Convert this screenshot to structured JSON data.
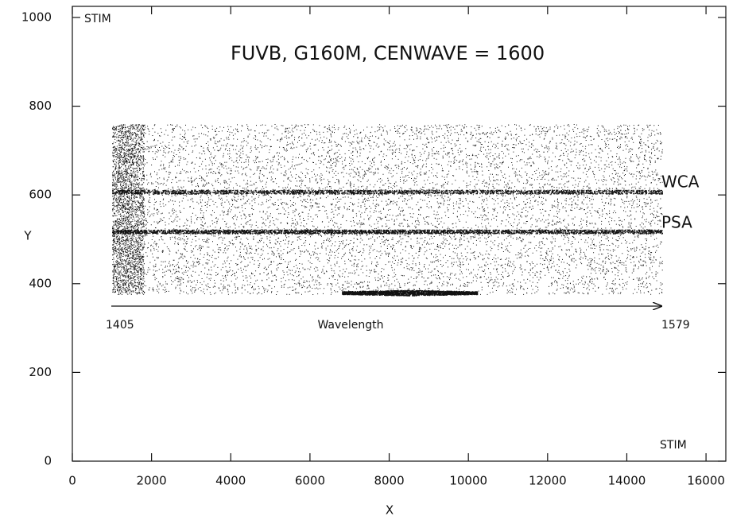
{
  "chart_data": {
    "type": "detector-image",
    "title": "FUVB, G160M, CENWAVE = 1600",
    "x_label": "X",
    "y_label": "Y",
    "xlim": [
      0,
      16500
    ],
    "xticks": [
      0,
      2000,
      4000,
      6000,
      8000,
      10000,
      12000,
      14000,
      16000
    ],
    "ylim": [
      0,
      1025
    ],
    "yticks": [
      0,
      200,
      400,
      600,
      800,
      1000
    ],
    "annotations": {
      "stim_top": "STIM",
      "stim_bottom": "STIM",
      "wca": "WCA",
      "psa": "PSA",
      "wavelength_start": "1405",
      "wavelength_label": "Wavelength",
      "wavelength_end": "1579"
    },
    "color": "#111111"
  }
}
